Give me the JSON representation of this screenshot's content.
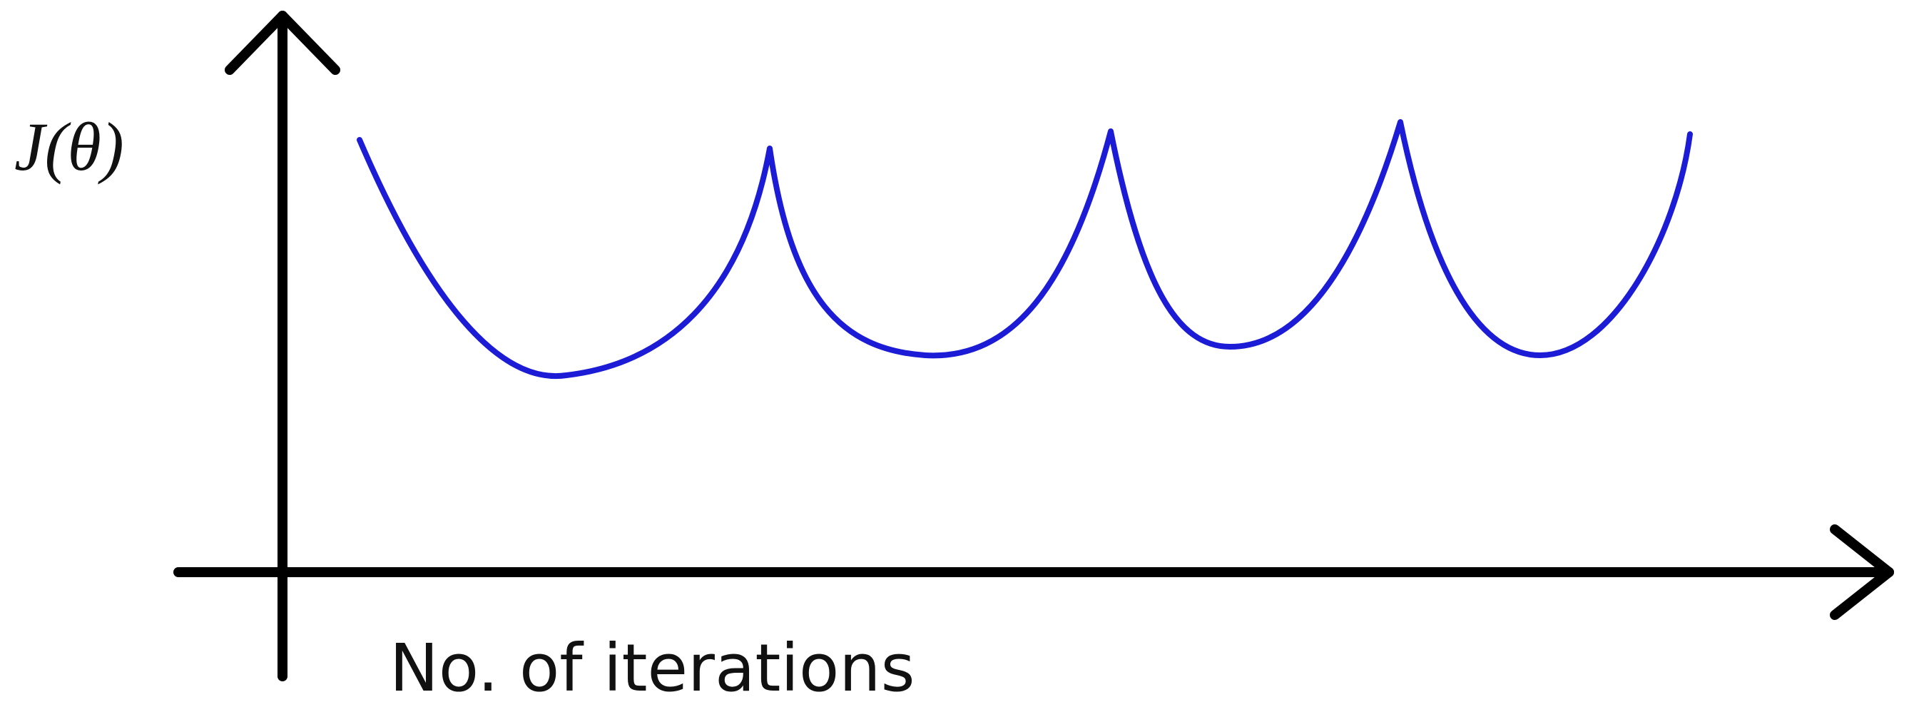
{
  "diagram": {
    "y_axis_label": "J(θ)",
    "x_axis_label": "No. of iterations"
  }
}
